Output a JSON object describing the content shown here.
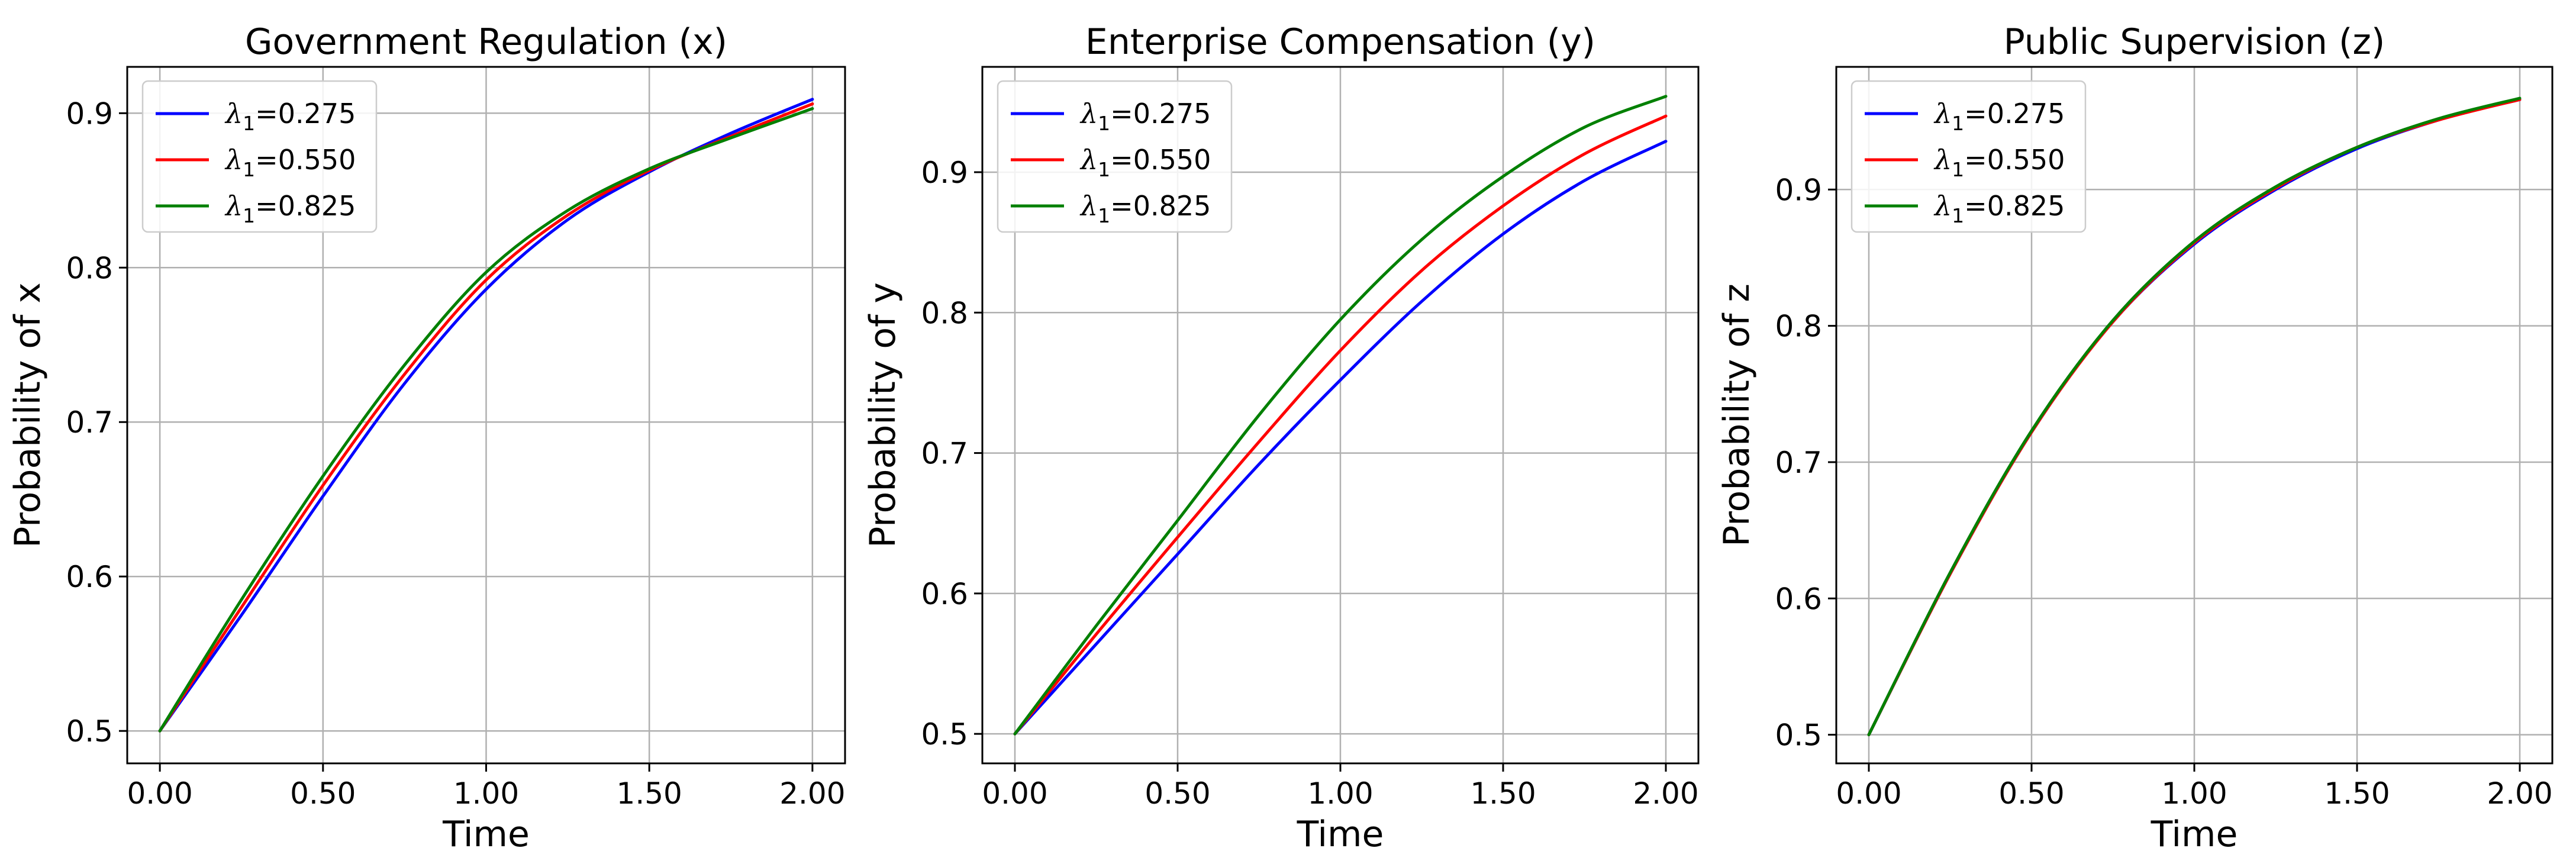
{
  "chart_data": [
    {
      "type": "line",
      "title": "Government Regulation (x)",
      "xlabel": "Time",
      "ylabel": "Probability of x",
      "xlim": [
        -0.1,
        2.1
      ],
      "ylim": [
        0.479,
        0.93
      ],
      "xticks": [
        0,
        0.5,
        1.0,
        1.5,
        2.0
      ],
      "xtick_labels": [
        "0.00",
        "0.50",
        "1.00",
        "1.50",
        "2.00"
      ],
      "yticks": [
        0.5,
        0.6,
        0.7,
        0.8,
        0.9
      ],
      "ytick_labels": [
        "0.5",
        "0.6",
        "0.7",
        "0.8",
        "0.9"
      ],
      "grid": true,
      "legend": "upper-left",
      "x": [
        0,
        0.25,
        0.5,
        0.75,
        1.0,
        1.25,
        1.5,
        1.75,
        2.0
      ],
      "series": [
        {
          "name": "λ1=0.275",
          "color": "#0000ff",
          "values": [
            0.5,
            0.575,
            0.652,
            0.725,
            0.786,
            0.831,
            0.862,
            0.887,
            0.909
          ]
        },
        {
          "name": "λ1=0.550",
          "color": "#ff0000",
          "values": [
            0.5,
            0.58,
            0.659,
            0.731,
            0.792,
            0.834,
            0.863,
            0.885,
            0.906
          ]
        },
        {
          "name": "λ1=0.825",
          "color": "#008000",
          "values": [
            0.5,
            0.585,
            0.665,
            0.737,
            0.797,
            0.837,
            0.864,
            0.884,
            0.903
          ]
        }
      ]
    },
    {
      "type": "line",
      "title": "Enterprise Compensation (y)",
      "xlabel": "Time",
      "ylabel": "Probability of y",
      "xlim": [
        -0.1,
        2.1
      ],
      "ylim": [
        0.479,
        0.975
      ],
      "xticks": [
        0,
        0.5,
        1.0,
        1.5,
        2.0
      ],
      "xtick_labels": [
        "0.00",
        "0.50",
        "1.00",
        "1.50",
        "2.00"
      ],
      "yticks": [
        0.5,
        0.6,
        0.7,
        0.8,
        0.9
      ],
      "ytick_labels": [
        "0.5",
        "0.6",
        "0.7",
        "0.8",
        "0.9"
      ],
      "grid": true,
      "legend": "upper-left",
      "x": [
        0,
        0.25,
        0.5,
        0.75,
        1.0,
        1.25,
        1.5,
        1.75,
        2.0
      ],
      "series": [
        {
          "name": "λ1=0.275",
          "color": "#0000ff",
          "values": [
            0.5,
            0.564,
            0.628,
            0.692,
            0.752,
            0.808,
            0.856,
            0.894,
            0.922
          ]
        },
        {
          "name": "λ1=0.550",
          "color": "#ff0000",
          "values": [
            0.5,
            0.571,
            0.64,
            0.708,
            0.773,
            0.83,
            0.876,
            0.913,
            0.94
          ]
        },
        {
          "name": "λ1=0.825",
          "color": "#008000",
          "values": [
            0.5,
            0.577,
            0.652,
            0.727,
            0.795,
            0.852,
            0.897,
            0.932,
            0.954
          ]
        }
      ]
    },
    {
      "type": "line",
      "title": "Public Supervision (z)",
      "xlabel": "Time",
      "ylabel": "Probability of z",
      "xlim": [
        -0.1,
        2.1
      ],
      "ylim": [
        0.479,
        0.99
      ],
      "xticks": [
        0,
        0.5,
        1.0,
        1.5,
        2.0
      ],
      "xtick_labels": [
        "0.00",
        "0.50",
        "1.00",
        "1.50",
        "2.00"
      ],
      "yticks": [
        0.5,
        0.6,
        0.7,
        0.8,
        0.9
      ],
      "ytick_labels": [
        "0.5",
        "0.6",
        "0.7",
        "0.8",
        "0.9"
      ],
      "grid": true,
      "legend": "upper-left",
      "x": [
        0,
        0.25,
        0.5,
        0.75,
        1.0,
        1.25,
        1.5,
        1.75,
        2.0
      ],
      "series": [
        {
          "name": "λ1=0.275",
          "color": "#0000ff",
          "values": [
            0.5,
            0.618,
            0.722,
            0.803,
            0.86,
            0.9,
            0.93,
            0.951,
            0.966
          ]
        },
        {
          "name": "λ1=0.550",
          "color": "#ff0000",
          "values": [
            0.5,
            0.618,
            0.722,
            0.803,
            0.861,
            0.901,
            0.931,
            0.951,
            0.966
          ]
        },
        {
          "name": "λ1=0.825",
          "color": "#008000",
          "values": [
            0.5,
            0.619,
            0.723,
            0.804,
            0.862,
            0.902,
            0.931,
            0.952,
            0.967
          ]
        }
      ]
    }
  ]
}
